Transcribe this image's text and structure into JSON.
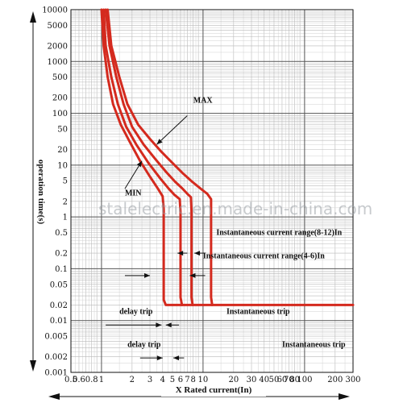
{
  "chart_data": {
    "type": "line",
    "title": "",
    "xlabel": "X Rated current(In)",
    "ylabel": "operation time(s)",
    "x_scale": "log",
    "y_scale": "log",
    "xlim": [
      0.5,
      300
    ],
    "ylim": [
      0.001,
      10000
    ],
    "grid": true,
    "x_ticks": [
      {
        "v": 0.5,
        "label": "0.5"
      },
      {
        "v": 0.6,
        "label": "0.6"
      },
      {
        "v": 0.8,
        "label": "0.8"
      },
      {
        "v": 1,
        "label": "1"
      },
      {
        "v": 2,
        "label": "2"
      },
      {
        "v": 3,
        "label": "3"
      },
      {
        "v": 4,
        "label": "4"
      },
      {
        "v": 5,
        "label": "5"
      },
      {
        "v": 6,
        "label": "6"
      },
      {
        "v": 7,
        "label": "7"
      },
      {
        "v": 8,
        "label": "8"
      },
      {
        "v": 10,
        "label": "10"
      },
      {
        "v": 20,
        "label": "20"
      },
      {
        "v": 30,
        "label": "30"
      },
      {
        "v": 40,
        "label": "40"
      },
      {
        "v": 50,
        "label": "50"
      },
      {
        "v": 60,
        "label": "60"
      },
      {
        "v": 70,
        "label": "70"
      },
      {
        "v": 80,
        "label": "80"
      },
      {
        "v": 100,
        "label": "100"
      },
      {
        "v": 200,
        "label": "200"
      },
      {
        "v": 300,
        "label": "300"
      }
    ],
    "y_ticks": [
      {
        "v": 10000,
        "label": "10000"
      },
      {
        "v": 5000,
        "label": "5000"
      },
      {
        "v": 2000,
        "label": "2000"
      },
      {
        "v": 1000,
        "label": "1000"
      },
      {
        "v": 500,
        "label": "500"
      },
      {
        "v": 200,
        "label": "200"
      },
      {
        "v": 100,
        "label": "100"
      },
      {
        "v": 50,
        "label": "50"
      },
      {
        "v": 20,
        "label": "20"
      },
      {
        "v": 10,
        "label": "10"
      },
      {
        "v": 5,
        "label": "5"
      },
      {
        "v": 2,
        "label": "2"
      },
      {
        "v": 1,
        "label": "1"
      },
      {
        "v": 0.5,
        "label": "0.5"
      },
      {
        "v": 0.2,
        "label": "0.2"
      },
      {
        "v": 0.1,
        "label": "0.1"
      },
      {
        "v": 0.05,
        "label": "0.05"
      },
      {
        "v": 0.02,
        "label": "0.02"
      },
      {
        "v": 0.01,
        "label": "0.01"
      },
      {
        "v": 0.005,
        "label": "0.005"
      },
      {
        "v": 0.002,
        "label": "0.002"
      },
      {
        "v": 0.001,
        "label": "0.001"
      }
    ],
    "series": [
      {
        "color": "#d42a1e",
        "points": [
          [
            1.0,
            10000
          ],
          [
            1.05,
            2000
          ],
          [
            1.15,
            500
          ],
          [
            1.3,
            150
          ],
          [
            1.55,
            60
          ],
          [
            1.9,
            28
          ],
          [
            2.4,
            12
          ],
          [
            3.0,
            6
          ],
          [
            3.6,
            3.5
          ],
          [
            4.0,
            2.5
          ],
          [
            4.1,
            1.4
          ],
          [
            4.1,
            0.025
          ],
          [
            4.3,
            0.02
          ],
          [
            12,
            0.02
          ],
          [
            300,
            0.02
          ]
        ]
      },
      {
        "color": "#d42a1e",
        "points": [
          [
            1.05,
            10000
          ],
          [
            1.1,
            2000
          ],
          [
            1.25,
            500
          ],
          [
            1.45,
            150
          ],
          [
            1.75,
            55
          ],
          [
            2.2,
            25
          ],
          [
            2.9,
            11
          ],
          [
            3.8,
            5.5
          ],
          [
            4.6,
            3.5
          ],
          [
            5.2,
            2.7
          ],
          [
            5.9,
            2.2
          ],
          [
            6.0,
            1.2
          ],
          [
            6.0,
            0.028
          ],
          [
            6.2,
            0.02
          ]
        ]
      },
      {
        "color": "#d42a1e",
        "points": [
          [
            1.1,
            10000
          ],
          [
            1.2,
            2000
          ],
          [
            1.4,
            500
          ],
          [
            1.65,
            150
          ],
          [
            2.0,
            55
          ],
          [
            2.6,
            25
          ],
          [
            3.4,
            13
          ],
          [
            4.3,
            7.5
          ],
          [
            5.3,
            4.8
          ],
          [
            6.2,
            3.6
          ],
          [
            7.0,
            2.8
          ],
          [
            7.6,
            2.4
          ],
          [
            7.7,
            1.3
          ],
          [
            7.7,
            0.028
          ],
          [
            7.9,
            0.02
          ]
        ]
      },
      {
        "color": "#d42a1e",
        "points": [
          [
            1.15,
            10000
          ],
          [
            1.25,
            2000
          ],
          [
            1.5,
            500
          ],
          [
            1.8,
            150
          ],
          [
            2.3,
            60
          ],
          [
            3.0,
            32
          ],
          [
            3.9,
            18
          ],
          [
            5.0,
            11
          ],
          [
            6.3,
            7.0
          ],
          [
            7.8,
            4.8
          ],
          [
            9.5,
            3.5
          ],
          [
            11.0,
            2.8
          ],
          [
            12.0,
            2.2
          ],
          [
            12.0,
            0.028
          ],
          [
            12.3,
            0.02
          ]
        ]
      }
    ],
    "annotations": [
      {
        "text": "MAX",
        "x": 8.0,
        "y": 160
      },
      {
        "text": "MIN",
        "x": 1.7,
        "y": 2.6
      },
      {
        "text": "Instantaneous current range(8-12)In",
        "x": 13.5,
        "y": 0.45
      },
      {
        "text": "Instantaneous current range(4-6)In",
        "x": 10.0,
        "y": 0.16
      },
      {
        "text": "delay trip",
        "x": 1.5,
        "y": 0.0135
      },
      {
        "text": "Instantaneous trip",
        "x": 17.0,
        "y": 0.0135
      },
      {
        "text": "delay trip",
        "x": 1.8,
        "y": 0.0031
      },
      {
        "text": "Instantaneous trip",
        "x": 60.0,
        "y": 0.0031
      }
    ],
    "arrows": [
      {
        "from": [
          7.0,
          90
        ],
        "to": [
          3.5,
          25
        ]
      },
      {
        "from": [
          1.7,
          3.5
        ],
        "to": [
          2.5,
          12
        ]
      },
      {
        "from": [
          7.0,
          0.2
        ],
        "to": [
          5.6,
          0.2
        ]
      },
      {
        "from": [
          10.5,
          0.2
        ],
        "to": [
          8.2,
          0.2
        ]
      },
      {
        "from": [
          1.7,
          0.074
        ],
        "to": [
          3.0,
          0.074
        ]
      },
      {
        "from": [
          10.5,
          0.074
        ],
        "to": [
          7.4,
          0.074
        ]
      },
      {
        "from": [
          1.1,
          0.0082
        ],
        "to": [
          3.9,
          0.0082
        ]
      },
      {
        "from": [
          5.8,
          0.0082
        ],
        "to": [
          4.3,
          0.0082
        ]
      },
      {
        "from": [
          2.4,
          0.0019
        ],
        "to": [
          4.0,
          0.0019
        ]
      },
      {
        "from": [
          6.5,
          0.0019
        ],
        "to": [
          5.1,
          0.0019
        ]
      }
    ]
  },
  "watermark": "stalelectric.en.made-in-china.com"
}
